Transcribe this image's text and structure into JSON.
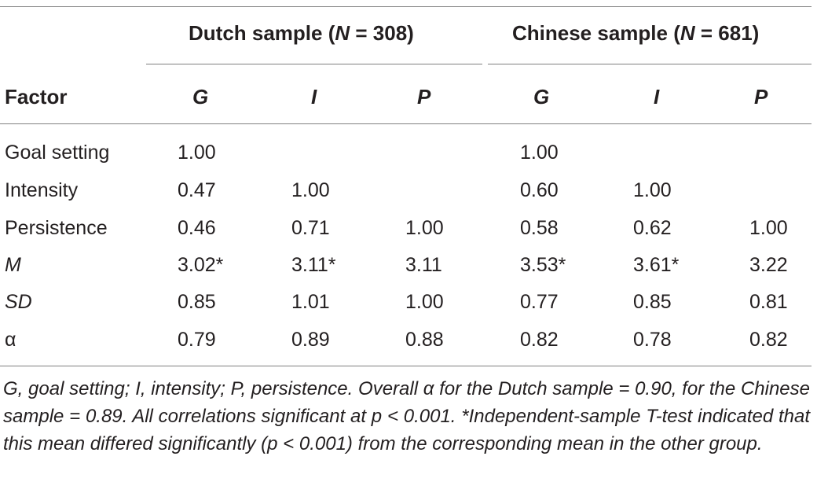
{
  "groups": {
    "dutch": {
      "prefix": "Dutch sample (",
      "n_symbol": "N",
      "suffix": " = 308)"
    },
    "chinese": {
      "prefix": "Chinese sample (",
      "n_symbol": "N",
      "suffix": " = 681)"
    }
  },
  "header": {
    "factor": "Factor",
    "cols": [
      "G",
      "I",
      "P",
      "G",
      "I",
      "P"
    ]
  },
  "rows": [
    {
      "label": "Goal setting",
      "italic": false,
      "cells": [
        "1.00",
        "",
        "",
        "1.00",
        "",
        ""
      ]
    },
    {
      "label": "Intensity",
      "italic": false,
      "cells": [
        "0.47",
        "1.00",
        "",
        "0.60",
        "1.00",
        ""
      ]
    },
    {
      "label": "Persistence",
      "italic": false,
      "cells": [
        "0.46",
        "0.71",
        "1.00",
        "0.58",
        "0.62",
        "1.00"
      ]
    },
    {
      "label": "M",
      "italic": true,
      "cells": [
        "3.02*",
        "3.11*",
        "3.11",
        "3.53*",
        "3.61*",
        "3.22"
      ]
    },
    {
      "label": "SD",
      "italic": true,
      "cells": [
        "0.85",
        "1.01",
        "1.00",
        "0.77",
        "0.85",
        "0.81"
      ]
    },
    {
      "label": "α",
      "italic": false,
      "cells": [
        "0.79",
        "0.89",
        "0.88",
        "0.82",
        "0.78",
        "0.82"
      ]
    }
  ],
  "note": "G, goal setting; I, intensity; P, persistence. Overall α for the Dutch sample = 0.90, for the Chinese sample = 0.89. All correlations significant at p < 0.001. *Independent-sample T-test indicated that this mean differed significantly (p < 0.001) from the corresponding mean in the other group."
}
